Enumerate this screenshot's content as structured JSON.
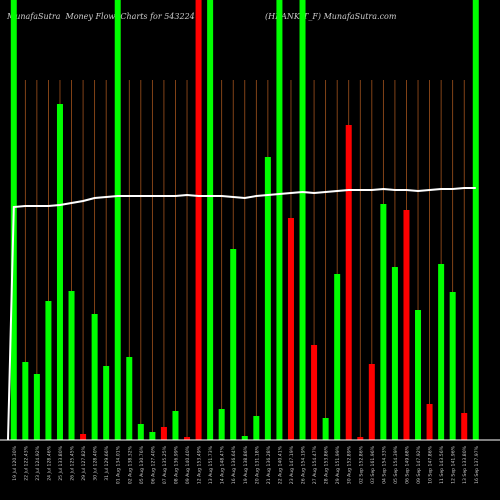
{
  "header": {
    "left": "MunafaSutra  Money Flow  Charts for 543224",
    "right": "(HRANKIT_F) MunafaSutra.com"
  },
  "colors": {
    "background": "#000000",
    "up_bar": "#00ff00",
    "down_bar": "#ff0000",
    "grid_line": "#a0521d",
    "ma_line": "#ffffff",
    "baseline": "#ffffff"
  },
  "chart_data": {
    "type": "bar",
    "title": "",
    "xlabel": "",
    "ylabel": "",
    "ylim": [
      0,
      440
    ],
    "grid": true,
    "categories": [
      "19 Jul 120.30%",
      "22 Jul 122.43%",
      "23 Jul 124.92%",
      "24 Jul 128.46%",
      "25 Jul 133.80%",
      "26 Jul 125.45%",
      "29 Jul 127.82%",
      "30 Jul 128.40%",
      "31 Jul 129.66%",
      "01 Aug 134.01%",
      "02 Aug 138.32%",
      "05 Aug 130.76%",
      "06 Aug 127.40%",
      "07 Aug 135.25%",
      "08 Aug 136.99%",
      "09 Aug 140.40%",
      "12 Aug 153.49%",
      "13 Aug 151.73%",
      "14 Aug 148.47%",
      "16 Aug 136.64%",
      "19 Aug 138.86%",
      "20 Aug 131.18%",
      "21 Aug 136.28%",
      "22 Aug 140.41%",
      "23 Aug 147.19%",
      "26 Aug 154.19%",
      "27 Aug 154.47%",
      "28 Aug 153.86%",
      "29 Aug 151.99%",
      "30 Aug 152.89%",
      "02 Sep 152.86%",
      "03 Sep 161.96%",
      "04 Sep 154.33%",
      "05 Sep 154.39%",
      "06 Sep 149.68%",
      "09 Sep 147.92%",
      "10 Sep 147.86%",
      "11 Sep 143.56%",
      "12 Sep 141.96%",
      "13 Sep 133.80%",
      "16 Sep 137.97%"
    ],
    "values": [
      440,
      78,
      66,
      139,
      336,
      149,
      6,
      126,
      74,
      440,
      83,
      16,
      8,
      13,
      29,
      3,
      440,
      440,
      31,
      191,
      4,
      24,
      283,
      440,
      222,
      440,
      95,
      22,
      166,
      315,
      3,
      76,
      236,
      173,
      230,
      130,
      36,
      176,
      148,
      27,
      440
    ],
    "directions": [
      "up",
      "up",
      "up",
      "up",
      "up",
      "up",
      "down",
      "up",
      "up",
      "up",
      "up",
      "up",
      "up",
      "down",
      "up",
      "down",
      "down",
      "up",
      "up",
      "up",
      "up",
      "up",
      "up",
      "up",
      "down",
      "up",
      "down",
      "up",
      "up",
      "down",
      "down",
      "down",
      "up",
      "up",
      "down",
      "up",
      "down",
      "up",
      "up",
      "down",
      "up"
    ],
    "series": [
      {
        "values": [
          233,
          234,
          234,
          234,
          235,
          237,
          239,
          242,
          243,
          244,
          244,
          244,
          244,
          244,
          244,
          245,
          244,
          244,
          244,
          243,
          242,
          244,
          245,
          246,
          247,
          248,
          247,
          248,
          249,
          250,
          250,
          250,
          251,
          250,
          250,
          249,
          250,
          251,
          251,
          252,
          252
        ]
      }
    ]
  }
}
